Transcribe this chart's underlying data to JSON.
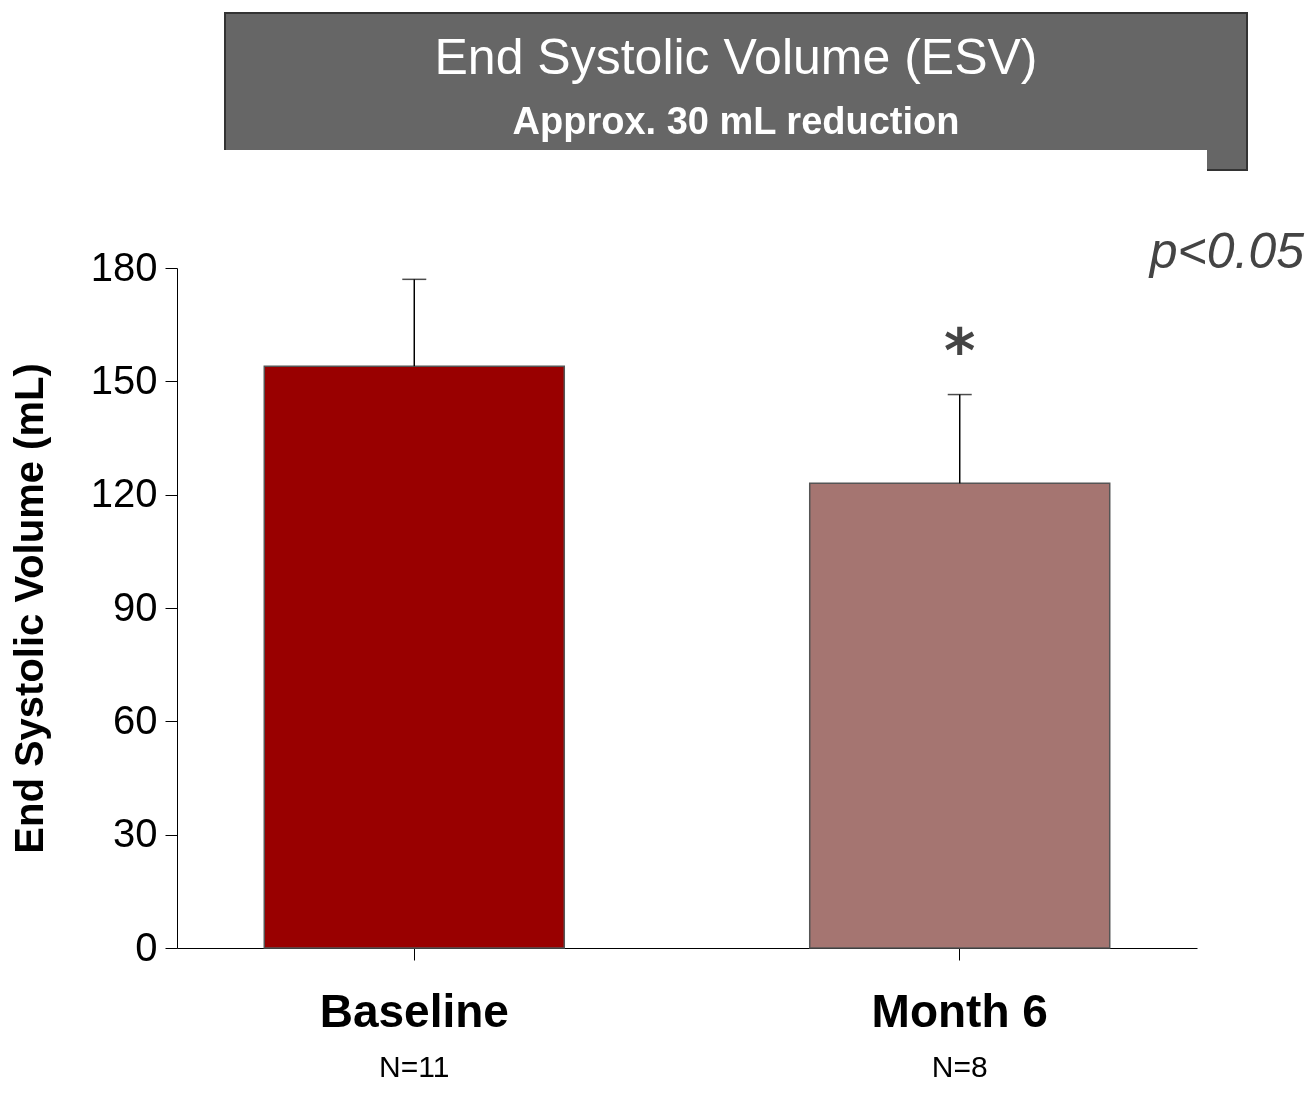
{
  "chart_data": {
    "type": "bar",
    "title": "End Systolic Volume (ESV)",
    "subtitle": "Approx. 30 mL reduction",
    "ylabel": "End  Systolic Volume (mL)",
    "categories": [
      "Baseline",
      "Month 6"
    ],
    "values": [
      154,
      123
    ],
    "colors": [
      "#990000",
      "#a57571"
    ],
    "errors": [
      [
        154,
        177
      ],
      [
        123,
        146.5
      ]
    ],
    "ylim": [
      0,
      180
    ],
    "yticks": [
      0,
      30,
      60,
      90,
      120,
      150,
      180
    ],
    "grid": false,
    "legend": false,
    "annotations": [
      "p<0.05",
      {
        "text": "*",
        "x": "Month 6",
        "y": 146.5
      },
      "N=11",
      "N=8"
    ]
  }
}
